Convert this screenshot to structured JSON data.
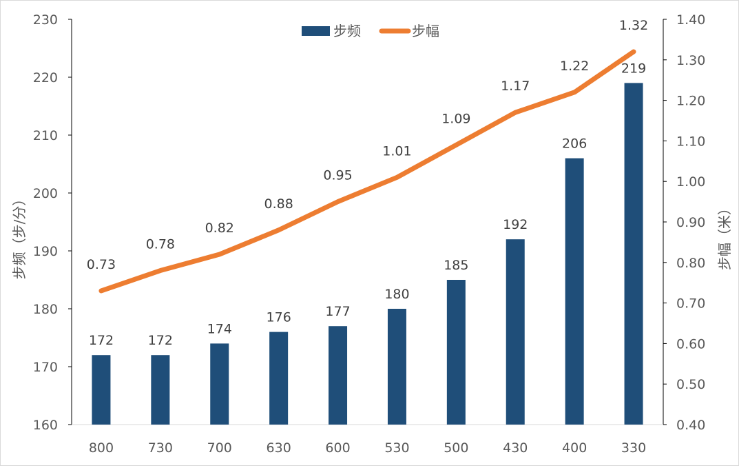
{
  "chart_data": {
    "type": "bar+line",
    "categories": [
      "800",
      "730",
      "700",
      "630",
      "600",
      "530",
      "500",
      "430",
      "400",
      "330"
    ],
    "series": [
      {
        "name": "步频",
        "type": "bar",
        "axis": "left",
        "color": "#1f4e79",
        "values": [
          172,
          172,
          174,
          176,
          177,
          180,
          185,
          192,
          206,
          219
        ],
        "labels": [
          "172",
          "172",
          "174",
          "176",
          "177",
          "180",
          "185",
          "192",
          "206",
          "219"
        ]
      },
      {
        "name": "步幅",
        "type": "line",
        "axis": "right",
        "color": "#ed7d31",
        "values": [
          0.73,
          0.78,
          0.82,
          0.88,
          0.95,
          1.01,
          1.09,
          1.17,
          1.22,
          1.32
        ],
        "labels": [
          "0.73",
          "0.78",
          "0.82",
          "0.88",
          "0.95",
          "1.01",
          "1.09",
          "1.17",
          "1.22",
          "1.32"
        ]
      }
    ],
    "y_left": {
      "label": "步频（步/分）",
      "min": 160,
      "max": 230,
      "ticks": [
        "160",
        "170",
        "180",
        "190",
        "200",
        "210",
        "220",
        "230"
      ]
    },
    "y_right": {
      "label": "步幅（米）",
      "min": 0.4,
      "max": 1.4,
      "ticks": [
        "0.40",
        "0.50",
        "0.60",
        "0.70",
        "0.80",
        "0.90",
        "1.00",
        "1.10",
        "1.20",
        "1.30",
        "1.40"
      ]
    },
    "legend": {
      "position": "top-center",
      "items": [
        "步频",
        "步幅"
      ]
    },
    "grid": false
  }
}
